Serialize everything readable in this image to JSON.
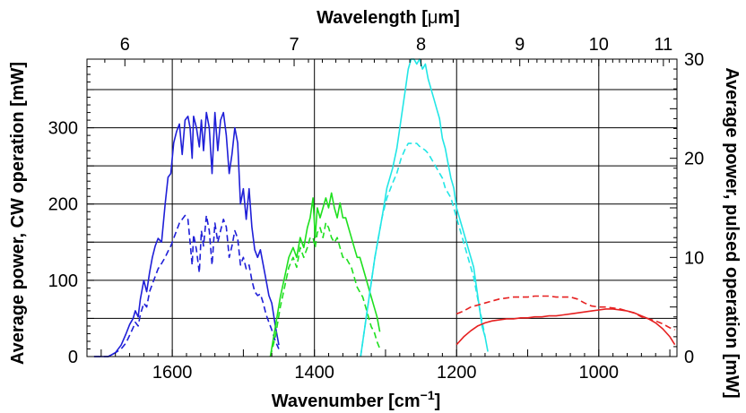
{
  "chart_data": {
    "type": "line",
    "grid": true,
    "bottom_axis": {
      "label": "Wavenumber [cm",
      "label_sup": "−1",
      "label_end": "]",
      "range": [
        1720,
        890
      ],
      "ticks": [
        1600,
        1400,
        1200,
        1000
      ],
      "minor_step": 20
    },
    "top_axis": {
      "label": "Wavelength [",
      "label_mu": "μ",
      "label_end": "m]",
      "ticks": [
        6,
        7,
        8,
        9,
        10,
        11
      ]
    },
    "left_axis": {
      "label": "Average power, CW operation [mW]",
      "range": [
        0,
        390
      ],
      "ticks": [
        0,
        100,
        200,
        300
      ],
      "minor_step": 10
    },
    "right_axis": {
      "label": "Average power, pulsed operation [mW]",
      "range": [
        0,
        30
      ],
      "ticks": [
        0,
        10,
        20,
        30
      ],
      "minor_step": 1
    },
    "series": [
      {
        "color": "#1f1fd8",
        "style": "solid",
        "axis": "left",
        "x": [
          1710,
          1690,
          1680,
          1672,
          1665,
          1660,
          1655,
          1652,
          1648,
          1645,
          1640,
          1636,
          1632,
          1628,
          1624,
          1620,
          1615,
          1610,
          1606,
          1602,
          1598,
          1594,
          1590,
          1586,
          1582,
          1578,
          1575,
          1572,
          1570,
          1566,
          1562,
          1559,
          1556,
          1552,
          1548,
          1544,
          1540,
          1536,
          1532,
          1528,
          1524,
          1520,
          1516,
          1512,
          1508,
          1504,
          1500,
          1496,
          1492,
          1488,
          1484,
          1480,
          1476,
          1472,
          1468,
          1464,
          1460,
          1455,
          1450
        ],
        "y": [
          0,
          0,
          5,
          15,
          30,
          42,
          50,
          60,
          52,
          75,
          100,
          85,
          110,
          130,
          145,
          155,
          150,
          200,
          235,
          240,
          280,
          295,
          305,
          265,
          310,
          315,
          300,
          260,
          315,
          300,
          275,
          310,
          270,
          320,
          300,
          240,
          320,
          270,
          310,
          320,
          290,
          240,
          265,
          300,
          280,
          200,
          220,
          180,
          220,
          170,
          140,
          130,
          140,
          120,
          100,
          80,
          70,
          40,
          15
        ]
      },
      {
        "color": "#1f1fd8",
        "style": "dash",
        "axis": "left",
        "x": [
          1710,
          1690,
          1680,
          1672,
          1665,
          1660,
          1655,
          1652,
          1648,
          1645,
          1640,
          1636,
          1632,
          1628,
          1624,
          1620,
          1615,
          1610,
          1606,
          1602,
          1598,
          1594,
          1590,
          1586,
          1582,
          1578,
          1575,
          1572,
          1570,
          1566,
          1562,
          1559,
          1556,
          1552,
          1548,
          1544,
          1540,
          1536,
          1532,
          1528,
          1524,
          1520,
          1516,
          1512,
          1508,
          1504,
          1500,
          1496,
          1492,
          1488,
          1484,
          1480,
          1476,
          1472,
          1468,
          1464,
          1460,
          1455,
          1450
        ],
        "y": [
          0,
          0,
          5,
          10,
          18,
          28,
          38,
          45,
          40,
          55,
          70,
          65,
          85,
          95,
          105,
          115,
          122,
          130,
          138,
          145,
          155,
          165,
          175,
          180,
          185,
          180,
          150,
          120,
          160,
          140,
          110,
          165,
          145,
          185,
          165,
          120,
          175,
          150,
          165,
          180,
          170,
          130,
          145,
          165,
          155,
          120,
          130,
          115,
          120,
          100,
          85,
          80,
          82,
          70,
          55,
          45,
          35,
          20,
          10
        ]
      },
      {
        "color": "#1fe01f",
        "style": "solid",
        "axis": "right",
        "x": [
          1462,
          1455,
          1448,
          1442,
          1436,
          1430,
          1425,
          1420,
          1415,
          1410,
          1406,
          1402,
          1399,
          1396,
          1392,
          1388,
          1384,
          1380,
          1376,
          1372,
          1368,
          1364,
          1360,
          1356,
          1352,
          1348,
          1344,
          1340,
          1336,
          1332,
          1328,
          1324,
          1320,
          1316,
          1312,
          1308
        ],
        "y": [
          0,
          3,
          6,
          8,
          10,
          11,
          10,
          12,
          11,
          13,
          14,
          16,
          12,
          15,
          14,
          15,
          16,
          15,
          16.5,
          15,
          14,
          15.5,
          14,
          14,
          13,
          12,
          11,
          10,
          10,
          9,
          8,
          7,
          6,
          5,
          4,
          2.5
        ]
      },
      {
        "color": "#1fe01f",
        "style": "dash",
        "axis": "right",
        "x": [
          1462,
          1455,
          1448,
          1442,
          1436,
          1430,
          1425,
          1420,
          1415,
          1410,
          1406,
          1402,
          1399,
          1396,
          1392,
          1388,
          1384,
          1380,
          1376,
          1372,
          1368,
          1364,
          1360,
          1356,
          1352,
          1348,
          1344,
          1340,
          1336,
          1332,
          1328,
          1324,
          1320,
          1316,
          1312,
          1308
        ],
        "y": [
          0,
          2,
          5,
          7,
          9,
          10,
          9,
          11,
          10,
          11,
          12,
          12,
          11,
          12.5,
          13,
          12,
          13.5,
          13,
          12,
          11.5,
          12,
          11,
          10,
          10,
          9.5,
          9,
          8,
          7,
          6.5,
          6,
          5,
          4,
          3,
          2.5,
          1.5,
          0.8
        ]
      },
      {
        "color": "#22e6e6",
        "style": "solid",
        "axis": "right",
        "x": [
          1335,
          1325,
          1315,
          1305,
          1298,
          1290,
          1284,
          1278,
          1272,
          1268,
          1264,
          1260,
          1256,
          1252,
          1248,
          1244,
          1240,
          1236,
          1232,
          1228,
          1224,
          1220,
          1216,
          1212,
          1208,
          1204,
          1200,
          1196,
          1192,
          1188,
          1184,
          1180,
          1176,
          1172,
          1168,
          1164,
          1160,
          1156
        ],
        "y": [
          0,
          5,
          10,
          14,
          17,
          19,
          21,
          24,
          27,
          29,
          30,
          30,
          29.5,
          30,
          29,
          29.5,
          28,
          27,
          26,
          25,
          24,
          22,
          21,
          19.5,
          18,
          17,
          15,
          14,
          13,
          12,
          11,
          10,
          9,
          7,
          5,
          3,
          2,
          0.5
        ]
      },
      {
        "color": "#22e6e6",
        "style": "dash",
        "axis": "right",
        "x": [
          1335,
          1325,
          1315,
          1305,
          1298,
          1290,
          1284,
          1278,
          1272,
          1268,
          1264,
          1260,
          1256,
          1252,
          1248,
          1244,
          1240,
          1236,
          1232,
          1228,
          1224,
          1220,
          1216,
          1212,
          1208,
          1204,
          1200,
          1196,
          1192,
          1188,
          1184,
          1180,
          1176,
          1172,
          1168,
          1164,
          1160
        ],
        "y": [
          0,
          5,
          10,
          14,
          16,
          17.5,
          18.5,
          20,
          21,
          21.5,
          21.5,
          21.5,
          21.5,
          21.2,
          21,
          20.8,
          20.5,
          20,
          19.5,
          19,
          18.5,
          18,
          17,
          16.5,
          16,
          15,
          14,
          13,
          12,
          11,
          10,
          9,
          8,
          6.5,
          5,
          3.5,
          2
        ]
      },
      {
        "color": "#e62020",
        "style": "solid",
        "axis": "right",
        "x": [
          1200,
          1190,
          1180,
          1170,
          1160,
          1150,
          1140,
          1130,
          1120,
          1110,
          1100,
          1090,
          1080,
          1070,
          1060,
          1050,
          1040,
          1030,
          1020,
          1010,
          1000,
          990,
          980,
          970,
          960,
          950,
          940,
          930,
          920,
          910,
          900,
          893
        ],
        "y": [
          1.2,
          2,
          2.6,
          3.1,
          3.4,
          3.6,
          3.7,
          3.8,
          3.8,
          3.9,
          3.9,
          4,
          4,
          4.1,
          4.1,
          4.2,
          4.3,
          4.4,
          4.5,
          4.6,
          4.7,
          4.8,
          4.8,
          4.7,
          4.6,
          4.4,
          4.1,
          3.8,
          3.4,
          2.8,
          2,
          1.2
        ]
      },
      {
        "color": "#e62020",
        "style": "dash",
        "axis": "right",
        "x": [
          1200,
          1190,
          1180,
          1170,
          1160,
          1150,
          1140,
          1130,
          1120,
          1110,
          1100,
          1090,
          1080,
          1070,
          1060,
          1050,
          1040,
          1030,
          1020,
          1010,
          1000,
          990,
          980,
          970,
          960,
          950,
          940,
          930,
          920,
          910,
          900,
          893
        ],
        "y": [
          4.3,
          4.6,
          5,
          5.2,
          5.4,
          5.6,
          5.8,
          5.9,
          6,
          6,
          6,
          6.1,
          6.1,
          6.1,
          6,
          6,
          6,
          5.8,
          5.4,
          5.1,
          5,
          5,
          4.9,
          4.8,
          4.6,
          4.4,
          4,
          3.8,
          3.6,
          3.3,
          2.9,
          2.7
        ]
      }
    ]
  }
}
